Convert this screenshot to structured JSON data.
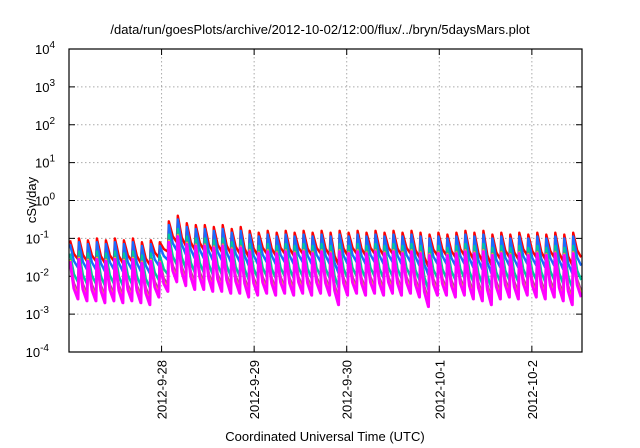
{
  "chart_data": {
    "type": "line",
    "title": "/data/run/goesPlots/archive/2012-10-02/12:00/flux/../bryn/5daysMars.plot",
    "xlabel": "Coordinated Universal Time (UTC)",
    "ylabel": "cSv/day",
    "yscale": "log",
    "ylim": [
      0.0001,
      10000
    ],
    "y_ticks": [
      {
        "base": "10",
        "exp": "-4",
        "value": -4
      },
      {
        "base": "10",
        "exp": "-3",
        "value": -3
      },
      {
        "base": "10",
        "exp": "-2",
        "value": -2
      },
      {
        "base": "10",
        "exp": "-1",
        "value": -1
      },
      {
        "base": "10",
        "exp": "0",
        "value": 0
      },
      {
        "base": "10",
        "exp": "1",
        "value": 1
      },
      {
        "base": "10",
        "exp": "2",
        "value": 2
      },
      {
        "base": "10",
        "exp": "3",
        "value": 3
      },
      {
        "base": "10",
        "exp": "4",
        "value": 4
      }
    ],
    "x_unit": "hours since 2012-09-27 00:00 UTC",
    "xlim": [
      0,
      133
    ],
    "x_ticks": [
      {
        "label": "2012-9-28",
        "value": 24
      },
      {
        "label": "2012-9-29",
        "value": 48
      },
      {
        "label": "2012-9-30",
        "value": 72
      },
      {
        "label": "2012-10-1",
        "value": 96
      },
      {
        "label": "2012-10-2",
        "value": 120
      }
    ],
    "grid": true,
    "tooth_period_hours": 2.33,
    "reference_log10_peaks": [
      -1.05,
      -1.0,
      -1.05,
      -1.0,
      -1.05,
      -1.0,
      -1.05,
      -1.0,
      -1.1,
      -1.05,
      -1.1,
      -0.55,
      -0.4,
      -0.6,
      -0.65,
      -0.65,
      -0.7,
      -0.65,
      -0.75,
      -0.7,
      -0.8,
      -0.85,
      -0.8,
      -0.85,
      -0.8,
      -0.85,
      -0.8,
      -0.85,
      -0.8,
      -0.85,
      -0.8,
      -0.85,
      -0.8,
      -0.85,
      -0.8,
      -0.85,
      -0.8,
      -0.85,
      -0.8,
      -0.85,
      -0.9,
      -0.85,
      -0.9,
      -0.85,
      -0.8,
      -0.85,
      -0.8,
      -0.9,
      -0.85,
      -0.9,
      -0.85,
      -0.9,
      -0.85,
      -0.9,
      -0.85,
      -0.9,
      -0.85
    ],
    "reference_log10_troughs": [
      -1.55,
      -1.6,
      -1.6,
      -1.65,
      -1.6,
      -1.65,
      -1.6,
      -1.65,
      -1.7,
      -1.5,
      -1.35,
      -1.1,
      -1.2,
      -1.3,
      -1.3,
      -1.35,
      -1.35,
      -1.4,
      -1.4,
      -1.5,
      -1.45,
      -1.4,
      -1.45,
      -1.4,
      -1.45,
      -1.4,
      -1.45,
      -1.4,
      -1.45,
      -1.7,
      -1.45,
      -1.4,
      -1.45,
      -1.4,
      -1.45,
      -1.4,
      -1.45,
      -1.4,
      -1.5,
      -1.75,
      -1.45,
      -1.45,
      -1.5,
      -1.45,
      -1.55,
      -1.6,
      -1.7,
      -1.55,
      -1.5,
      -1.55,
      -1.45,
      -1.5,
      -1.55,
      -1.5,
      -1.6,
      -1.7,
      -1.5
    ],
    "series": [
      {
        "name": "red",
        "color": "#ff0000",
        "peak_offset_decades": 0,
        "trough_offset_decades": 0
      },
      {
        "name": "blue",
        "color": "#1a6cff",
        "peak_offset_decades": -0.1,
        "trough_offset_decades": -0.22
      },
      {
        "name": "teal",
        "color": "#00c8a0",
        "peak_offset_decades": -0.35,
        "trough_offset_decades": -0.6
      },
      {
        "name": "purple",
        "color": "#a0508c",
        "peak_offset_decades": -0.5,
        "trough_offset_decades": -0.88
      },
      {
        "name": "yellow",
        "color": "#e6e600",
        "peak_offset_decades": -0.52,
        "trough_offset_decades": -0.98
      },
      {
        "name": "magenta",
        "color": "#ff00ff",
        "peak_offset_decades": -0.55,
        "trough_offset_decades": -1.05
      }
    ]
  }
}
